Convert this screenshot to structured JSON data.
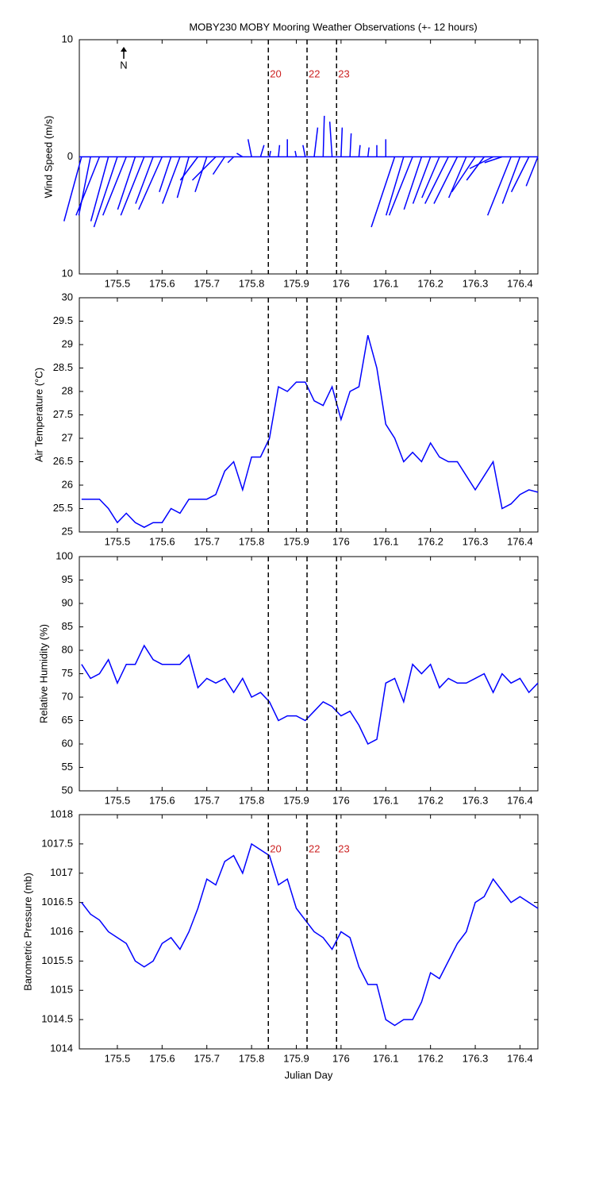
{
  "title": "MOBY230 MOBY Mooring Weather Observations (+- 12 hours)",
  "chart_data": [
    {
      "type": "stick",
      "ylabel": "Wind Speed (m/s)",
      "north_label": "N",
      "color": "#0000ff",
      "xlim": [
        175.415,
        176.44
      ],
      "xticks": [
        175.5,
        175.6,
        175.7,
        175.8,
        175.9,
        176,
        176.1,
        176.2,
        176.3,
        176.4
      ],
      "ylim": [
        -10,
        10
      ],
      "yticks": [
        {
          "value": -10,
          "label": "10"
        },
        0,
        10
      ],
      "vlines": [
        175.8375,
        175.924,
        175.99
      ],
      "vline_labels": [
        "20",
        "22",
        "23"
      ],
      "vline_label_color": "#cc2222",
      "x": [
        175.42,
        175.44,
        175.46,
        175.48,
        175.5,
        175.52,
        175.54,
        175.56,
        175.58,
        175.6,
        175.62,
        175.64,
        175.66,
        175.68,
        175.7,
        175.72,
        175.74,
        175.76,
        175.78,
        175.8,
        175.82,
        175.84,
        175.86,
        175.88,
        175.9,
        175.92,
        175.94,
        175.96,
        175.98,
        176,
        176.02,
        176.04,
        176.06,
        176.08,
        176.1,
        176.12,
        176.14,
        176.16,
        176.18,
        176.2,
        176.22,
        176.24,
        176.26,
        176.28,
        176.3,
        176.32,
        176.34,
        176.36,
        176.38,
        176.4,
        176.42,
        176.44
      ],
      "u": [
        -1.5,
        -1,
        -2,
        -1.5,
        -2,
        -2,
        -1.5,
        -2,
        -1.5,
        -2,
        -1,
        -1.5,
        -1,
        -1.5,
        -1,
        -2,
        -1,
        -0.5,
        -0.5,
        -0.3,
        0.3,
        0.1,
        0.1,
        0,
        -0.1,
        -0.2,
        0.3,
        0.1,
        -0.2,
        0.1,
        0.1,
        0.1,
        0.1,
        0,
        0,
        -2,
        -1.5,
        -2,
        -1.5,
        -1.5,
        -1.5,
        -2,
        -2,
        -1.5,
        -2,
        -1.5,
        -2,
        -1.5,
        -2,
        -1.5,
        -1.5,
        -1
      ],
      "v": [
        -5.5,
        -5,
        -5,
        -5.5,
        -6,
        -5,
        -4.5,
        -5,
        -4,
        -4.5,
        -3,
        -4,
        -3.5,
        -2,
        -3,
        -2,
        -1.5,
        -0.5,
        0.3,
        1.5,
        1,
        0.5,
        1,
        1.5,
        0.5,
        1,
        2.5,
        3.5,
        3,
        2.5,
        2,
        1,
        0.8,
        1,
        1.5,
        -6,
        -5,
        -5,
        -4.5,
        -4,
        -3.5,
        -4,
        -4,
        -3.5,
        -3,
        -2,
        -1,
        -0.5,
        -5,
        -4,
        -3,
        -2.5
      ]
    },
    {
      "type": "line",
      "ylabel": "Air Temperature (°C)",
      "color": "#0000ff",
      "xlim": [
        175.415,
        176.44
      ],
      "xticks": [
        175.5,
        175.6,
        175.7,
        175.8,
        175.9,
        176,
        176.1,
        176.2,
        176.3,
        176.4
      ],
      "ylim": [
        25,
        30
      ],
      "yticks": [
        25,
        25.5,
        26,
        26.5,
        27,
        27.5,
        28,
        28.5,
        29,
        29.5,
        30
      ],
      "vlines": [
        175.8375,
        175.924,
        175.99
      ],
      "x": [
        175.42,
        175.44,
        175.46,
        175.48,
        175.5,
        175.52,
        175.54,
        175.56,
        175.58,
        175.6,
        175.62,
        175.64,
        175.66,
        175.68,
        175.7,
        175.72,
        175.74,
        175.76,
        175.78,
        175.8,
        175.82,
        175.84,
        175.86,
        175.88,
        175.9,
        175.92,
        175.94,
        175.96,
        175.98,
        176,
        176.02,
        176.04,
        176.06,
        176.08,
        176.1,
        176.12,
        176.14,
        176.16,
        176.18,
        176.2,
        176.22,
        176.24,
        176.26,
        176.28,
        176.3,
        176.32,
        176.34,
        176.36,
        176.38,
        176.4,
        176.42,
        176.44
      ],
      "values": [
        25.7,
        25.7,
        25.7,
        25.5,
        25.2,
        25.4,
        25.2,
        25.1,
        25.2,
        25.2,
        25.5,
        25.4,
        25.7,
        25.7,
        25.7,
        25.8,
        26.3,
        26.5,
        25.9,
        26.6,
        26.6,
        27.0,
        28.1,
        28.0,
        28.2,
        28.2,
        27.8,
        27.7,
        28.1,
        27.4,
        28.0,
        28.1,
        29.2,
        28.5,
        27.3,
        27.0,
        26.5,
        26.7,
        26.5,
        26.9,
        26.6,
        26.5,
        26.5,
        26.2,
        25.9,
        26.2,
        26.5,
        25.5,
        25.6,
        25.8,
        25.9,
        25.85
      ]
    },
    {
      "type": "line",
      "ylabel": "Relative Humidity (%)",
      "color": "#0000ff",
      "xlim": [
        175.415,
        176.44
      ],
      "xticks": [
        175.5,
        175.6,
        175.7,
        175.8,
        175.9,
        176,
        176.1,
        176.2,
        176.3,
        176.4
      ],
      "ylim": [
        50,
        100
      ],
      "yticks": [
        50,
        55,
        60,
        65,
        70,
        75,
        80,
        85,
        90,
        95,
        100
      ],
      "vlines": [
        175.8375,
        175.924,
        175.99
      ],
      "x": [
        175.42,
        175.44,
        175.46,
        175.48,
        175.5,
        175.52,
        175.54,
        175.56,
        175.58,
        175.6,
        175.62,
        175.64,
        175.66,
        175.68,
        175.7,
        175.72,
        175.74,
        175.76,
        175.78,
        175.8,
        175.82,
        175.84,
        175.86,
        175.88,
        175.9,
        175.92,
        175.94,
        175.96,
        175.98,
        176,
        176.02,
        176.04,
        176.06,
        176.08,
        176.1,
        176.12,
        176.14,
        176.16,
        176.18,
        176.2,
        176.22,
        176.24,
        176.26,
        176.28,
        176.3,
        176.32,
        176.34,
        176.36,
        176.38,
        176.4,
        176.42,
        176.44
      ],
      "values": [
        77,
        74,
        75,
        78,
        73,
        77,
        77,
        81,
        78,
        77,
        77,
        77,
        79,
        72,
        74,
        73,
        74,
        71,
        74,
        70,
        71,
        69,
        65,
        66,
        66,
        65,
        67,
        69,
        68,
        66,
        67,
        64,
        60,
        61,
        73,
        74,
        69,
        77,
        75,
        77,
        72,
        74,
        73,
        73,
        74,
        75,
        71,
        75,
        73,
        74,
        71,
        73
      ]
    },
    {
      "type": "line",
      "ylabel": "Barometric Pressure (mb)",
      "xlabel": "Julian Day",
      "color": "#0000ff",
      "xlim": [
        175.415,
        176.44
      ],
      "xticks": [
        175.5,
        175.6,
        175.7,
        175.8,
        175.9,
        176,
        176.1,
        176.2,
        176.3,
        176.4
      ],
      "ylim": [
        1014,
        1018
      ],
      "yticks": [
        1014,
        1014.5,
        1015,
        1015.5,
        1016,
        1016.5,
        1017,
        1017.5,
        1018
      ],
      "vlines": [
        175.8375,
        175.924,
        175.99
      ],
      "vline_labels": [
        "20",
        "22",
        "23"
      ],
      "vline_label_color": "#cc2222",
      "x": [
        175.42,
        175.44,
        175.46,
        175.48,
        175.5,
        175.52,
        175.54,
        175.56,
        175.58,
        175.6,
        175.62,
        175.64,
        175.66,
        175.68,
        175.7,
        175.72,
        175.74,
        175.76,
        175.78,
        175.8,
        175.82,
        175.84,
        175.86,
        175.88,
        175.9,
        175.92,
        175.94,
        175.96,
        175.98,
        176,
        176.02,
        176.04,
        176.06,
        176.08,
        176.1,
        176.12,
        176.14,
        176.16,
        176.18,
        176.2,
        176.22,
        176.24,
        176.26,
        176.28,
        176.3,
        176.32,
        176.34,
        176.36,
        176.38,
        176.4,
        176.42,
        176.44
      ],
      "values": [
        1016.5,
        1016.3,
        1016.2,
        1016.0,
        1015.9,
        1015.8,
        1015.5,
        1015.4,
        1015.5,
        1015.8,
        1015.9,
        1015.7,
        1016.0,
        1016.4,
        1016.9,
        1016.8,
        1017.2,
        1017.3,
        1017.0,
        1017.5,
        1017.4,
        1017.3,
        1016.8,
        1016.9,
        1016.4,
        1016.2,
        1016.0,
        1015.9,
        1015.7,
        1016.0,
        1015.9,
        1015.4,
        1015.1,
        1015.1,
        1014.5,
        1014.4,
        1014.5,
        1014.5,
        1014.8,
        1015.3,
        1015.2,
        1015.5,
        1015.8,
        1016.0,
        1016.5,
        1016.6,
        1016.9,
        1016.7,
        1016.5,
        1016.6,
        1016.5,
        1016.4
      ]
    }
  ]
}
